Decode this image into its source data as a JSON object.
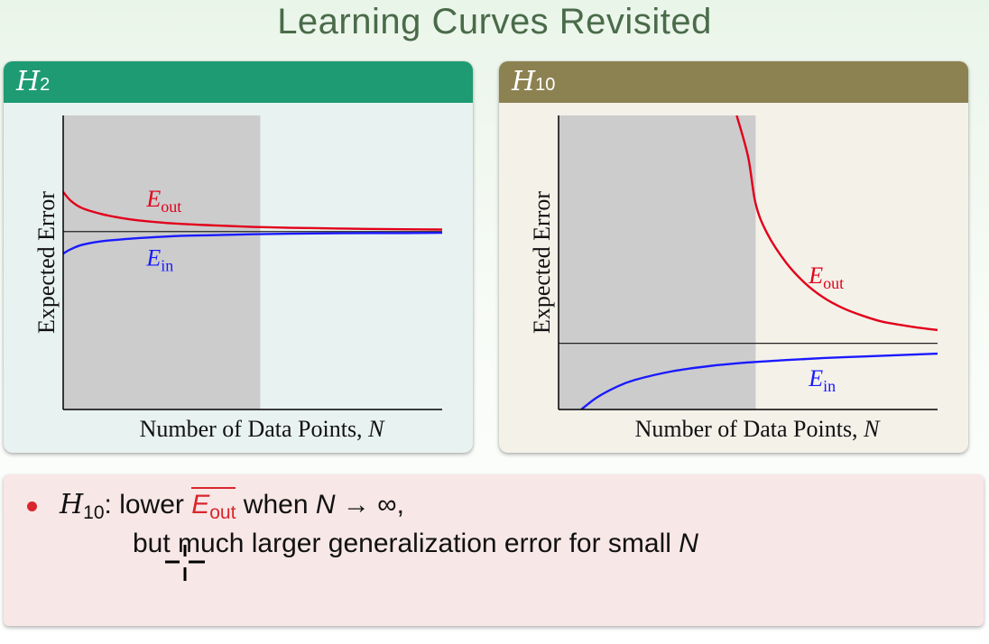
{
  "slide": {
    "title": "Learning Curves Revisited"
  },
  "panels": [
    {
      "header_main": "H",
      "header_sub": "2"
    },
    {
      "header_main": "H",
      "header_sub": "10"
    }
  ],
  "chart_data": [
    {
      "type": "line",
      "panel": "H2",
      "xlabel": "Number of Data Points, N",
      "ylabel": "Expected Error",
      "shaded_region": {
        "x_from": 0,
        "x_to": 0.52
      },
      "xlim": [
        0,
        1
      ],
      "ylim": [
        0,
        1
      ],
      "asymptote": 0.605,
      "series": [
        {
          "name": "E_out",
          "label_main": "E",
          "label_sub": "out",
          "color": "#e2001a",
          "points": [
            [
              0.0,
              0.74
            ],
            [
              0.02,
              0.71
            ],
            [
              0.05,
              0.685
            ],
            [
              0.1,
              0.665
            ],
            [
              0.15,
              0.652
            ],
            [
              0.2,
              0.643
            ],
            [
              0.3,
              0.632
            ],
            [
              0.4,
              0.626
            ],
            [
              0.5,
              0.621
            ],
            [
              0.6,
              0.618
            ],
            [
              0.7,
              0.616
            ],
            [
              0.8,
              0.614
            ],
            [
              0.9,
              0.613
            ],
            [
              1.0,
              0.612
            ]
          ]
        },
        {
          "name": "E_in",
          "label_main": "E",
          "label_sub": "in",
          "color": "#1a1aff",
          "points": [
            [
              0.0,
              0.53
            ],
            [
              0.02,
              0.545
            ],
            [
              0.05,
              0.56
            ],
            [
              0.1,
              0.572
            ],
            [
              0.15,
              0.578
            ],
            [
              0.2,
              0.583
            ],
            [
              0.3,
              0.59
            ],
            [
              0.4,
              0.593
            ],
            [
              0.5,
              0.596
            ],
            [
              0.6,
              0.598
            ],
            [
              0.7,
              0.599
            ],
            [
              0.8,
              0.6
            ],
            [
              0.9,
              0.6
            ],
            [
              1.0,
              0.601
            ]
          ]
        }
      ],
      "label_positions": {
        "E_out": [
          0.22,
          0.69
        ],
        "E_in": [
          0.22,
          0.49
        ]
      }
    },
    {
      "type": "line",
      "panel": "H10",
      "xlabel": "Number of Data Points, N",
      "ylabel": "Expected Error",
      "shaded_region": {
        "x_from": 0,
        "x_to": 0.52
      },
      "xlim": [
        0,
        1
      ],
      "ylim": [
        0,
        1
      ],
      "asymptote": 0.225,
      "series": [
        {
          "name": "E_out",
          "label_main": "E",
          "label_sub": "out",
          "color": "#e2001a",
          "points": [
            [
              0.47,
              1.0
            ],
            [
              0.5,
              0.86
            ],
            [
              0.52,
              0.7
            ],
            [
              0.55,
              0.6
            ],
            [
              0.6,
              0.5
            ],
            [
              0.65,
              0.43
            ],
            [
              0.7,
              0.38
            ],
            [
              0.75,
              0.345
            ],
            [
              0.8,
              0.32
            ],
            [
              0.85,
              0.3
            ],
            [
              0.9,
              0.288
            ],
            [
              0.95,
              0.278
            ],
            [
              1.0,
              0.27
            ]
          ]
        },
        {
          "name": "E_in",
          "label_main": "E",
          "label_sub": "in",
          "color": "#1a1aff",
          "points": [
            [
              0.06,
              0.0
            ],
            [
              0.1,
              0.04
            ],
            [
              0.15,
              0.075
            ],
            [
              0.2,
              0.1
            ],
            [
              0.3,
              0.13
            ],
            [
              0.4,
              0.148
            ],
            [
              0.5,
              0.16
            ],
            [
              0.6,
              0.168
            ],
            [
              0.7,
              0.175
            ],
            [
              0.8,
              0.18
            ],
            [
              0.9,
              0.185
            ],
            [
              1.0,
              0.19
            ]
          ]
        }
      ],
      "label_positions": {
        "E_out": [
          0.66,
          0.43
        ],
        "E_in": [
          0.66,
          0.08
        ]
      }
    }
  ],
  "bullet": {
    "h_main": "H",
    "h_sub": "10",
    "colon": ":",
    "text_lower": " lower ",
    "eout_main": "E",
    "eout_sub": "out",
    "text_when": " when ",
    "n_symbol": "N",
    "arrow_inf": " → ∞,",
    "line2_text": "but much larger generalization error for small ",
    "line2_n": "N"
  },
  "colors": {
    "accent_green": "#1e9b72",
    "accent_olive": "#8c8150",
    "bullet_red": "#d9262c"
  },
  "icons": {
    "cursor": "crosshair-cursor-icon"
  }
}
